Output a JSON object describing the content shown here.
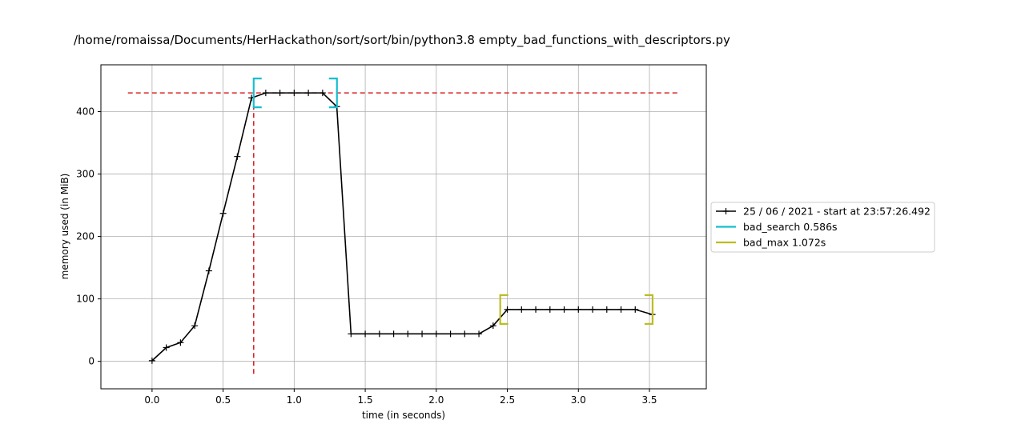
{
  "chart_data": {
    "type": "line",
    "title": "/home/romaissa/Documents/HerHackathon/sort/sort/bin/python3.8 empty_bad_functions_with_descriptors.py",
    "xlabel": "time (in seconds)",
    "ylabel": "memory used (in MiB)",
    "xlim": [
      -0.36,
      3.9
    ],
    "ylim": [
      -44,
      475
    ],
    "xticks": [
      0.0,
      0.5,
      1.0,
      1.5,
      2.0,
      2.5,
      3.0,
      3.5
    ],
    "xtick_labels": [
      "0.0",
      "0.5",
      "1.0",
      "1.5",
      "2.0",
      "2.5",
      "3.0",
      "3.5"
    ],
    "yticks": [
      0,
      100,
      200,
      300,
      400
    ],
    "ytick_labels": [
      "0",
      "100",
      "200",
      "300",
      "400"
    ],
    "grid": true,
    "legend_position": "right",
    "series": [
      {
        "name": "25 / 06 / 2021 - start at 23:57:26.492",
        "color": "#000000",
        "marker": "+",
        "x": [
          0.0,
          0.1,
          0.2,
          0.3,
          0.4,
          0.5,
          0.6,
          0.7,
          0.8,
          0.9,
          1.0,
          1.1,
          1.2,
          1.3,
          1.4,
          1.5,
          1.6,
          1.7,
          1.8,
          1.9,
          2.0,
          2.1,
          2.2,
          2.3,
          2.4,
          2.5,
          2.6,
          2.7,
          2.8,
          2.9,
          3.0,
          3.1,
          3.2,
          3.3,
          3.4,
          3.52
        ],
        "y": [
          1,
          22,
          30,
          57,
          145,
          237,
          328,
          422,
          430,
          430,
          430,
          430,
          430,
          408,
          44,
          44,
          44,
          44,
          44,
          44,
          44,
          44,
          44,
          44,
          57,
          83,
          83,
          83,
          83,
          83,
          83,
          83,
          83,
          83,
          83,
          75
        ]
      }
    ],
    "function_brackets": [
      {
        "name": "bad_search 0.586s",
        "color": "#17becf",
        "start": 0.715,
        "end": 1.301,
        "level": 430
      },
      {
        "name": "bad_max 1.072s",
        "color": "#bcbd22",
        "start": 2.45,
        "end": 3.522,
        "level": 83
      }
    ],
    "peak_lines": {
      "color": "#d62728",
      "max_memory": 430,
      "max_time": 0.715,
      "hline_x_range": [
        -0.17,
        3.7
      ],
      "vline_y_range": [
        -20,
        430
      ]
    }
  }
}
